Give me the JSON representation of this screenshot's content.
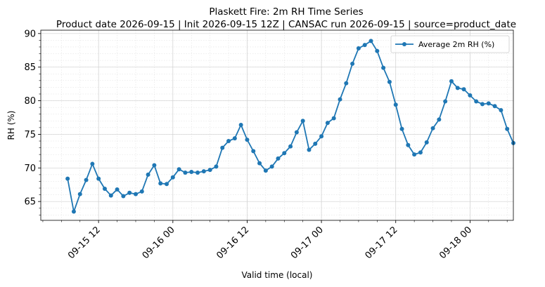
{
  "chart_data": {
    "type": "line",
    "title": "Plaskett Fire: 2m RH Time Series",
    "subtitle": "Product date 2026-09-15 | Init 2026-09-15 12Z | CANSAC run 2026-09-15 | source=product_date",
    "xlabel": "Valid time (local)",
    "ylabel": "RH (%)",
    "ylim": [
      62.2,
      90.5
    ],
    "xlim": [
      "2026-09-15 02:40",
      "2026-09-18 07:00"
    ],
    "grid": true,
    "legend_position": "top-right",
    "colors": {
      "series": "#1f77b4",
      "grid": "#b0b0b0"
    },
    "y_ticks": [
      {
        "value": 65,
        "label": "65"
      },
      {
        "value": 70,
        "label": "70"
      },
      {
        "value": 75,
        "label": "75"
      },
      {
        "value": 80,
        "label": "80"
      },
      {
        "value": 85,
        "label": "85"
      },
      {
        "value": 90,
        "label": "90"
      }
    ],
    "x_ticks": [
      {
        "value": "2026-09-15 12:00",
        "label": "09-15 12"
      },
      {
        "value": "2026-09-16 00:00",
        "label": "09-16 00"
      },
      {
        "value": "2026-09-16 12:00",
        "label": "09-16 12"
      },
      {
        "value": "2026-09-17 00:00",
        "label": "09-17 00"
      },
      {
        "value": "2026-09-17 12:00",
        "label": "09-17 12"
      },
      {
        "value": "2026-09-18 00:00",
        "label": "09-18 00"
      }
    ],
    "series": [
      {
        "name": "Average 2m RH (%)",
        "x": [
          "2026-09-15 07:00",
          "2026-09-15 08:00",
          "2026-09-15 09:00",
          "2026-09-15 10:00",
          "2026-09-15 11:00",
          "2026-09-15 12:00",
          "2026-09-15 13:00",
          "2026-09-15 14:00",
          "2026-09-15 15:00",
          "2026-09-15 16:00",
          "2026-09-15 17:00",
          "2026-09-15 18:00",
          "2026-09-15 19:00",
          "2026-09-15 20:00",
          "2026-09-15 21:00",
          "2026-09-15 22:00",
          "2026-09-15 23:00",
          "2026-09-16 00:00",
          "2026-09-16 01:00",
          "2026-09-16 02:00",
          "2026-09-16 03:00",
          "2026-09-16 04:00",
          "2026-09-16 05:00",
          "2026-09-16 06:00",
          "2026-09-16 07:00",
          "2026-09-16 08:00",
          "2026-09-16 09:00",
          "2026-09-16 10:00",
          "2026-09-16 11:00",
          "2026-09-16 12:00",
          "2026-09-16 13:00",
          "2026-09-16 14:00",
          "2026-09-16 15:00",
          "2026-09-16 16:00",
          "2026-09-16 17:00",
          "2026-09-16 18:00",
          "2026-09-16 19:00",
          "2026-09-16 20:00",
          "2026-09-16 21:00",
          "2026-09-16 22:00",
          "2026-09-16 23:00",
          "2026-09-17 00:00",
          "2026-09-17 01:00",
          "2026-09-17 02:00",
          "2026-09-17 03:00",
          "2026-09-17 04:00",
          "2026-09-17 05:00",
          "2026-09-17 06:00",
          "2026-09-17 07:00",
          "2026-09-17 08:00",
          "2026-09-17 09:00",
          "2026-09-17 10:00",
          "2026-09-17 11:00",
          "2026-09-17 12:00",
          "2026-09-17 13:00",
          "2026-09-17 14:00",
          "2026-09-17 15:00",
          "2026-09-17 16:00",
          "2026-09-17 17:00",
          "2026-09-17 18:00",
          "2026-09-17 19:00",
          "2026-09-17 20:00",
          "2026-09-17 21:00",
          "2026-09-17 22:00",
          "2026-09-17 23:00",
          "2026-09-18 00:00",
          "2026-09-18 01:00",
          "2026-09-18 02:00",
          "2026-09-18 03:00",
          "2026-09-18 04:00",
          "2026-09-18 05:00",
          "2026-09-18 06:00",
          "2026-09-18 07:00"
        ],
        "y": [
          68.4,
          63.5,
          66.1,
          68.2,
          70.6,
          68.4,
          66.9,
          65.9,
          66.8,
          65.8,
          66.3,
          66.1,
          66.5,
          69.0,
          70.4,
          67.7,
          67.6,
          68.6,
          69.8,
          69.3,
          69.4,
          69.3,
          69.5,
          69.7,
          70.2,
          73.0,
          74.0,
          74.4,
          76.4,
          74.2,
          72.5,
          70.7,
          69.6,
          70.2,
          71.4,
          72.2,
          73.2,
          75.3,
          77.0,
          72.7,
          73.6,
          74.7,
          76.7,
          77.4,
          80.2,
          82.6,
          85.5,
          87.8,
          88.3,
          88.9,
          87.4,
          84.9,
          82.8,
          79.4,
          75.8,
          73.4,
          72.0,
          72.3,
          73.8,
          75.9,
          77.2,
          79.9,
          82.9,
          81.9,
          81.7,
          80.8,
          79.9,
          79.5,
          79.6,
          79.2,
          78.6,
          75.8,
          73.7
        ]
      }
    ]
  }
}
